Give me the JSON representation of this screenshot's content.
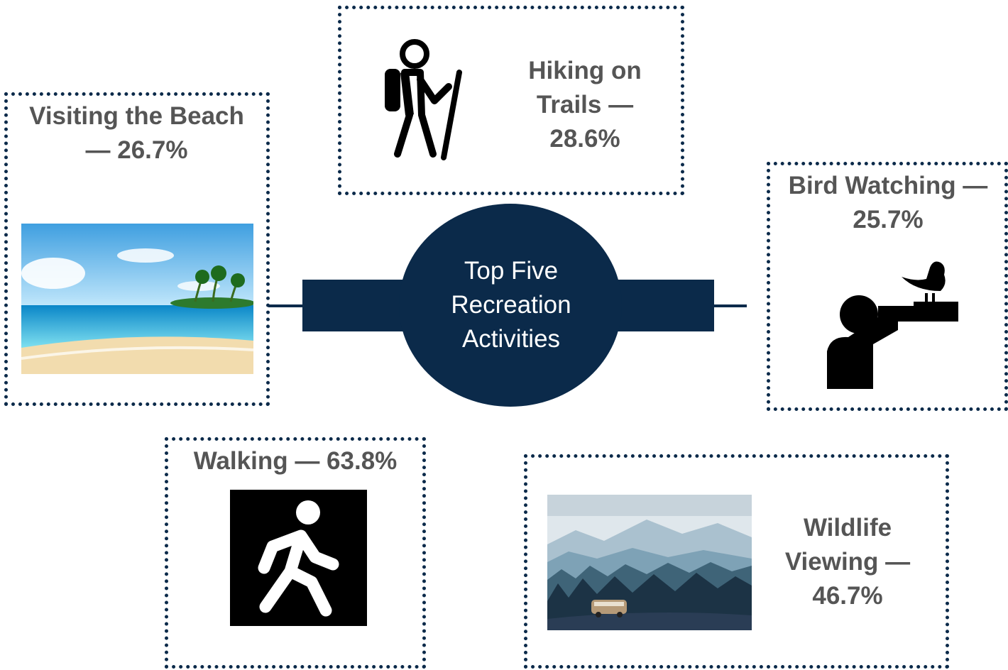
{
  "center": {
    "title": "Top Five Recreation Activities"
  },
  "nodes": [
    {
      "label": "Visiting the Beach — 26.7%"
    },
    {
      "label": "Hiking on Trails — 28.6%"
    },
    {
      "label": "Bird Watching — 25.7%"
    },
    {
      "label": "Walking — 63.8%"
    },
    {
      "label": "Wildlife Viewing — 46.7%"
    }
  ]
}
